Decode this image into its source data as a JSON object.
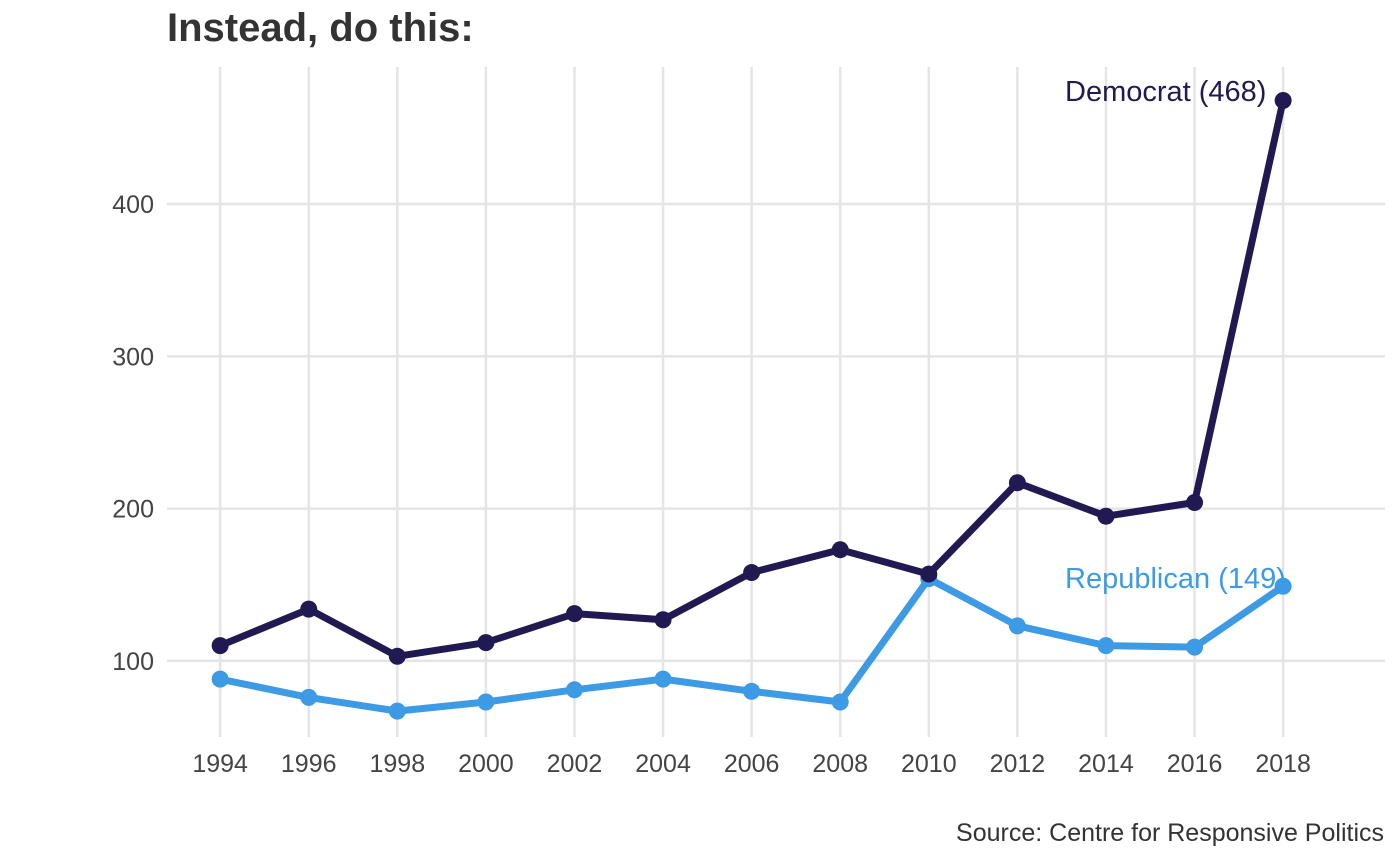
{
  "title": "Instead, do this:",
  "caption": "Source: Centre for Responsive Politics",
  "chart_data": {
    "type": "line",
    "x": [
      1994,
      1996,
      1998,
      2000,
      2002,
      2004,
      2006,
      2008,
      2010,
      2012,
      2014,
      2016,
      2018
    ],
    "x_tick_labels": [
      "1994",
      "1996",
      "1998",
      "2000",
      "2002",
      "2004",
      "2006",
      "2008",
      "2010",
      "2012",
      "2014",
      "2016",
      "2018"
    ],
    "y_ticks": [
      100,
      200,
      300,
      400
    ],
    "y_tick_labels": [
      "100",
      "200",
      "300",
      "400"
    ],
    "xlim": [
      1992.8,
      2020.3
    ],
    "ylim": [
      50,
      490
    ],
    "grid": true,
    "legend": "none",
    "series": [
      {
        "name": "Democrat",
        "label": "Democrat (468)",
        "color": "#211a52",
        "values": [
          110,
          134,
          103,
          112,
          131,
          127,
          158,
          173,
          157,
          217,
          195,
          204,
          468
        ]
      },
      {
        "name": "Republican",
        "label": "Republican (149)",
        "color": "#3d9be5",
        "values": [
          88,
          76,
          67,
          73,
          81,
          88,
          80,
          73,
          154,
          123,
          110,
          109,
          149
        ]
      }
    ],
    "title": "Instead, do this:",
    "xlabel": "",
    "ylabel": ""
  }
}
